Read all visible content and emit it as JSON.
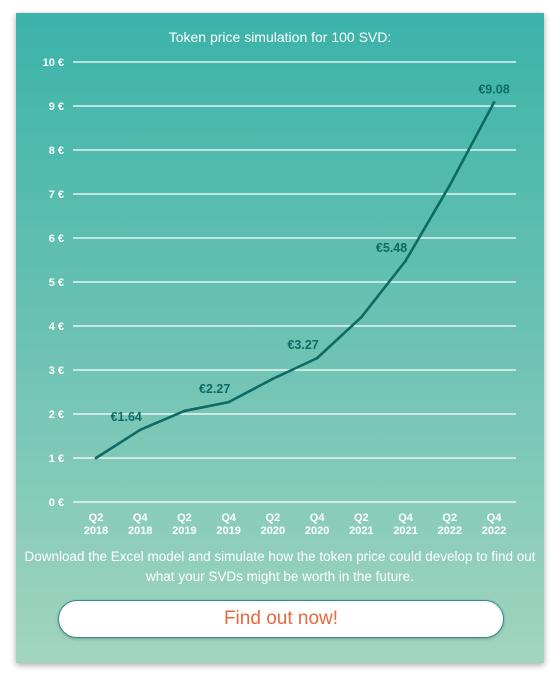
{
  "title": "Token price simulation for 100 SVD:",
  "description": "Download the Excel model and simulate how the token price could develop to find out what your SVDs might be worth in the future.",
  "cta_label": "Find out now!",
  "colors": {
    "line": "#0d6b63",
    "label": "#0d6b63",
    "grid": "#ffffff",
    "cta_text": "#e8683c"
  },
  "chart_data": {
    "type": "line",
    "title": "Token price simulation for 100 SVD:",
    "xlabel": "",
    "ylabel": "",
    "grid": true,
    "ylim": [
      0,
      10
    ],
    "yticks": [
      "0 €",
      "1 €",
      "2 €",
      "3 €",
      "4 €",
      "5 €",
      "6 €",
      "7 €",
      "8 €",
      "9 €",
      "10 €"
    ],
    "categories": [
      [
        "Q2",
        "2018"
      ],
      [
        "Q4",
        "2018"
      ],
      [
        "Q2",
        "2019"
      ],
      [
        "Q4",
        "2019"
      ],
      [
        "Q2",
        "2020"
      ],
      [
        "Q4",
        "2020"
      ],
      [
        "Q2",
        "2021"
      ],
      [
        "Q4",
        "2021"
      ],
      [
        "Q2",
        "2022"
      ],
      [
        "Q4",
        "2022"
      ]
    ],
    "series": [
      {
        "values": [
          1.0,
          1.64,
          2.07,
          2.27,
          2.8,
          3.27,
          4.2,
          5.48,
          7.2,
          9.08
        ]
      }
    ],
    "data_labels": [
      {
        "index": 1,
        "text": "€1.64"
      },
      {
        "index": 3,
        "text": "€2.27"
      },
      {
        "index": 5,
        "text": "€3.27"
      },
      {
        "index": 7,
        "text": "€5.48"
      },
      {
        "index": 9,
        "text": "€9.08"
      }
    ]
  }
}
